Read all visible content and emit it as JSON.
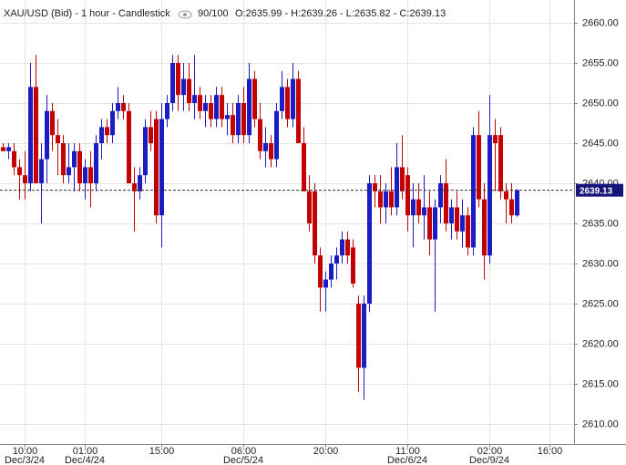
{
  "chart_data": {
    "type": "candlestick",
    "title": "XAU/USD (Bid) - 1 hour - Candlestick",
    "counter": "90/100",
    "ohlc_labels": [
      "O:",
      " - H:",
      " - L:",
      " - C:"
    ],
    "up_color": "#1c1cc4",
    "down_color": "#c40000",
    "grid": true,
    "open": [
      2644.5,
      2644,
      2644,
      2642,
      2641,
      2640,
      2652,
      2640,
      2643,
      2649,
      2646,
      2645,
      2641,
      2642,
      2644,
      2640,
      2642,
      2640,
      2645,
      2647,
      2646,
      2649,
      2650,
      2649,
      2640,
      2639,
      2641,
      2647,
      2648,
      2636,
      2648,
      2650,
      2655,
      2651,
      2653,
      2650,
      2651,
      2649,
      2650,
      2648,
      2651,
      2648,
      2648.5,
      2646,
      2650,
      2646,
      2653,
      2648,
      2644,
      2645,
      2643,
      2649,
      2652,
      2648,
      2653,
      2645,
      2639,
      2639,
      2631,
      2627,
      2628,
      2630,
      2631,
      2633,
      2632,
      2625,
      2617,
      2625,
      2640,
      2639,
      2637,
      2639,
      2637,
      2642,
      2641,
      2636,
      2638,
      2636,
      2637,
      2633,
      2637,
      2640,
      2635,
      2637,
      2634,
      2636,
      2632,
      2646,
      2638,
      2631,
      2646,
      2646,
      2639,
      2638,
      2635.99
    ],
    "high": [
      2645,
      2645,
      2645,
      2643,
      2644,
      2655,
      2656,
      2645,
      2651,
      2650,
      2648,
      2646,
      2645,
      2645,
      2645,
      2643,
      2644,
      2646,
      2648,
      2648,
      2650,
      2652,
      2651,
      2650,
      2642,
      2642,
      2648,
      2649,
      2649,
      2650,
      2651,
      2656,
      2656,
      2655,
      2655,
      2656,
      2652,
      2651,
      2651,
      2652,
      2652,
      2650,
      2650,
      2651,
      2652,
      2655,
      2654,
      2650,
      2647,
      2646,
      2650,
      2654,
      2653,
      2655,
      2654,
      2647,
      2641,
      2640,
      2632,
      2629,
      2631,
      2632,
      2634,
      2634,
      2633,
      2626,
      2626,
      2641,
      2641,
      2641,
      2640,
      2642,
      2645,
      2646,
      2642,
      2640,
      2640,
      2641,
      2639,
      2638,
      2641,
      2643,
      2638,
      2639,
      2638,
      2637,
      2647,
      2649,
      2640,
      2651,
      2648,
      2647,
      2640,
      2640,
      2639.26
    ],
    "low": [
      2644,
      2643,
      2641,
      2638,
      2638,
      2639,
      2640,
      2635,
      2640,
      2644,
      2641,
      2640,
      2640,
      2639,
      2639,
      2638,
      2637,
      2639,
      2643,
      2645,
      2645,
      2648,
      2648,
      2640,
      2634,
      2638,
      2640,
      2644,
      2635,
      2632,
      2647,
      2649,
      2649,
      2649,
      2649,
      2648,
      2648,
      2647,
      2647,
      2647,
      2647,
      2646,
      2645,
      2645,
      2645,
      2645,
      2647,
      2643,
      2642,
      2642,
      2642,
      2648,
      2647,
      2647,
      2645,
      2639,
      2634,
      2630,
      2624,
      2624,
      2627,
      2628,
      2630,
      2630,
      2627,
      2614,
      2613,
      2624,
      2637,
      2635,
      2635,
      2636,
      2636,
      2638,
      2634,
      2632,
      2635,
      2633,
      2631,
      2624,
      2635,
      2634,
      2633,
      2633,
      2632,
      2631,
      2631,
      2637,
      2628,
      2630,
      2639,
      2638,
      2635,
      2635,
      2635.82
    ],
    "close": [
      2644,
      2644.5,
      2642,
      2641,
      2640,
      2652,
      2640,
      2643,
      2649,
      2646,
      2645,
      2641,
      2642,
      2644,
      2640,
      2642,
      2640,
      2645,
      2647,
      2646,
      2649,
      2650,
      2649,
      2640,
      2639,
      2641,
      2647,
      2645,
      2636,
      2648,
      2650,
      2655,
      2651,
      2653,
      2650,
      2651,
      2649,
      2650,
      2648,
      2651,
      2648,
      2648.5,
      2646,
      2650,
      2646,
      2653,
      2648,
      2644,
      2645,
      2643,
      2649,
      2652,
      2648,
      2653,
      2645,
      2639,
      2635,
      2631,
      2627,
      2628,
      2630,
      2631,
      2633,
      2631,
      2627.5,
      2617,
      2625,
      2640,
      2639,
      2637,
      2639,
      2637,
      2642,
      2639,
      2636,
      2638,
      2636,
      2637,
      2633,
      2637,
      2640,
      2635,
      2637,
      2634,
      2636,
      2632,
      2646,
      2638,
      2631,
      2646,
      2645,
      2639,
      2638,
      2636,
      2639.13
    ],
    "xlim": [
      -0.5,
      104.5
    ],
    "xticks": [
      {
        "value": 4,
        "label": "10:00"
      },
      {
        "value": 15,
        "label": "01:00"
      },
      {
        "value": 29,
        "label": "15:00"
      },
      {
        "value": 44,
        "label": "06:00"
      },
      {
        "value": 59,
        "label": "20:00"
      },
      {
        "value": 74,
        "label": "11:00"
      },
      {
        "value": 89,
        "label": "02:00"
      },
      {
        "value": 100,
        "label": "16:00"
      }
    ],
    "xtick_dates": [
      {
        "value": 4,
        "label": "Dec/3/24"
      },
      {
        "value": 15,
        "label": "Dec/4/24"
      },
      {
        "value": 44,
        "label": "Dec/5/24"
      },
      {
        "value": 74,
        "label": "Dec/6/24"
      },
      {
        "value": 89,
        "label": "Dec/9/24"
      }
    ],
    "ylim": [
      2607.5,
      2662.84
    ],
    "yticks": [
      {
        "value": 2610,
        "label": "2610.00"
      },
      {
        "value": 2615,
        "label": "2615.00"
      },
      {
        "value": 2620,
        "label": "2620.00"
      },
      {
        "value": 2625,
        "label": "2625.00"
      },
      {
        "value": 2630,
        "label": "2630.00"
      },
      {
        "value": 2635,
        "label": "2635.00"
      },
      {
        "value": 2640,
        "label": "2640.00"
      },
      {
        "value": 2645,
        "label": "2645.00"
      },
      {
        "value": 2650,
        "label": "2650.00"
      },
      {
        "value": 2655,
        "label": "2655.00"
      },
      {
        "value": 2660,
        "label": "2660.00"
      }
    ]
  }
}
